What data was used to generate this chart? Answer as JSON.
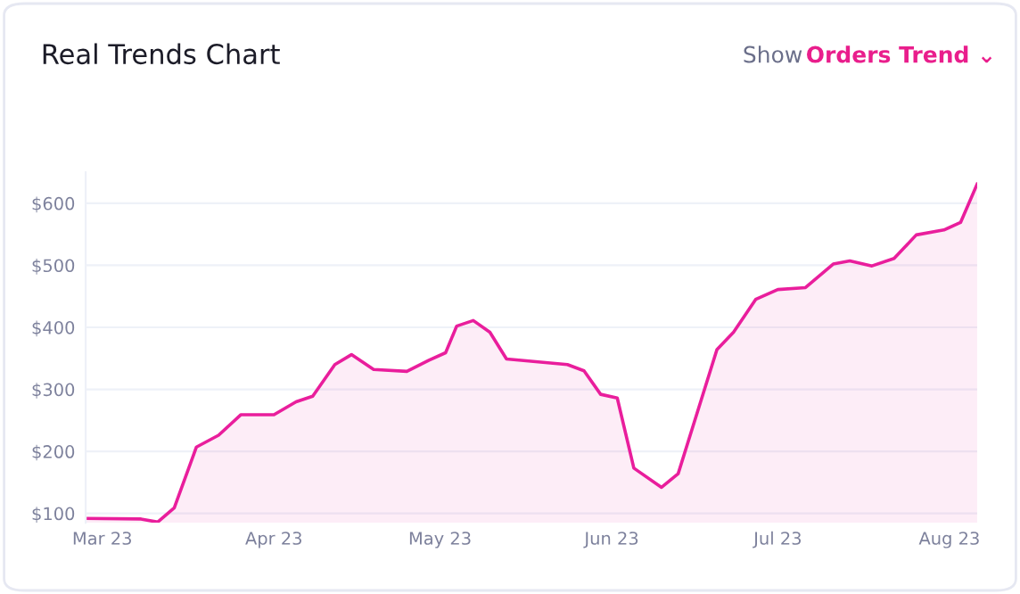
{
  "chart_data": {
    "type": "area",
    "title": "Real Trends Chart",
    "annotations": [
      "Show",
      "Orders Trend ⌄"
    ],
    "x": [
      "2023-02-26",
      "2023-03-08",
      "2023-03-11",
      "2023-03-14",
      "2023-03-18",
      "2023-03-22",
      "2023-03-26",
      "2023-04-01",
      "2023-04-05",
      "2023-04-08",
      "2023-04-12",
      "2023-04-15",
      "2023-04-19",
      "2023-04-25",
      "2023-04-29",
      "2023-05-02",
      "2023-05-04",
      "2023-05-07",
      "2023-05-10",
      "2023-05-13",
      "2023-05-24",
      "2023-05-27",
      "2023-05-30",
      "2023-06-02",
      "2023-06-05",
      "2023-06-10",
      "2023-06-13",
      "2023-06-20",
      "2023-06-23",
      "2023-06-27",
      "2023-07-01",
      "2023-07-06",
      "2023-07-11",
      "2023-07-14",
      "2023-07-18",
      "2023-07-22",
      "2023-07-26",
      "2023-07-31",
      "2023-08-03",
      "2023-08-06"
    ],
    "series": [
      {
        "color": "#e91e9c",
        "values": [
          92,
          91,
          86,
          109,
          207,
          226,
          259,
          259,
          280,
          289,
          340,
          356,
          332,
          329,
          347,
          359,
          402,
          411,
          392,
          349,
          340,
          330,
          292,
          286,
          173,
          142,
          164,
          364,
          392,
          445,
          461,
          464,
          502,
          507,
          499,
          511,
          549,
          557,
          569,
          631
        ]
      }
    ],
    "xlim": [
      "2023-02-26",
      "2023-08-06"
    ],
    "xticks": [
      {
        "value": "2023-03-01",
        "label": "Mar 23"
      },
      {
        "value": "2023-04-01",
        "label": "Apr 23"
      },
      {
        "value": "2023-05-01",
        "label": "May 23"
      },
      {
        "value": "2023-06-01",
        "label": "Jun 23"
      },
      {
        "value": "2023-07-01",
        "label": "Jul 23"
      },
      {
        "value": "2023-08-01",
        "label": "Aug 23"
      }
    ],
    "ylim": [
      85,
      650
    ],
    "yticks": [
      {
        "value": 100,
        "label": "$100"
      },
      {
        "value": 200,
        "label": "$200"
      },
      {
        "value": 300,
        "label": "$300"
      },
      {
        "value": 400,
        "label": "$400"
      },
      {
        "value": 500,
        "label": "$500"
      },
      {
        "value": 600,
        "label": "$600"
      }
    ],
    "grid": "y",
    "legend": false
  }
}
